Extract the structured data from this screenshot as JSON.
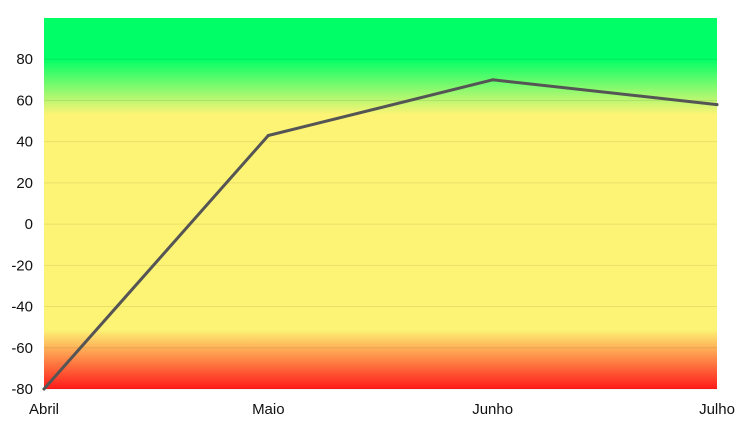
{
  "chart_data": {
    "type": "line",
    "title": "",
    "xlabel": "",
    "ylabel": "",
    "categories": [
      "Abril",
      "Maio",
      "Junho",
      "Julho"
    ],
    "series": [
      {
        "values": [
          -80,
          43,
          70,
          58
        ]
      }
    ],
    "ylim": [
      -80,
      100
    ],
    "yticks": [
      "-80",
      "-60",
      "-40",
      "-20",
      "0",
      "20",
      "40",
      "60",
      "80"
    ],
    "grid": true,
    "legend": "none",
    "line_color": "#555555",
    "background_bands": {
      "top_color": "#00ff66",
      "middle_color": "#fdf475",
      "bottom_color": "#ff1a1a"
    }
  }
}
